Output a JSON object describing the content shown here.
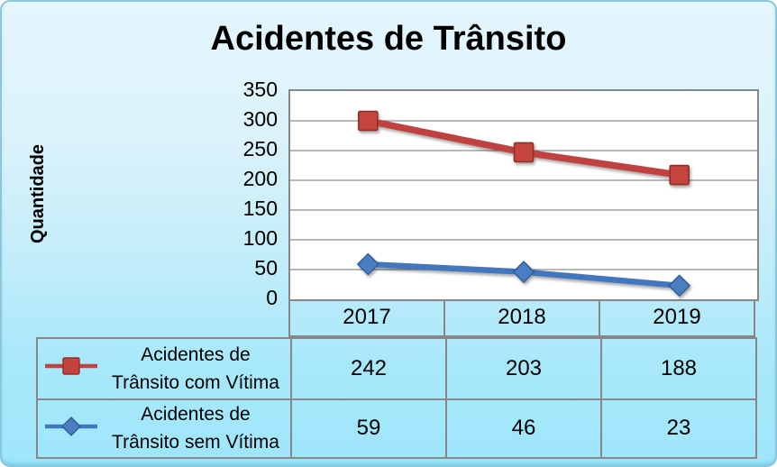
{
  "title": "Acidentes de Trânsito",
  "chart_data": {
    "type": "line",
    "title": "Acidentes de Trânsito",
    "xlabel": "",
    "ylabel": "Quantidade",
    "categories": [
      "2017",
      "2018",
      "2019"
    ],
    "ylim": [
      0,
      350
    ],
    "y_ticks": [
      0,
      50,
      100,
      150,
      200,
      250,
      300,
      350
    ],
    "grid": true,
    "legend_position": "table-left",
    "plot_background": "#ffffff",
    "series": [
      {
        "key": "com-vitima",
        "name": "Acidentes de Trânsito com Vítima",
        "label_lines": [
          "Acidentes de",
          "Trânsito com Vítima"
        ],
        "marker": "square",
        "line_color": "#bf4340",
        "marker_fill": "#c3443e",
        "marker_stroke": "#922f2a",
        "line_width": 7.5,
        "values": [
          242,
          203,
          188
        ],
        "marker_plotted_values": [
          300,
          247,
          209
        ]
      },
      {
        "key": "sem-vitima",
        "name": "Acidentes de Trânsito sem Vítima",
        "label_lines": [
          "Acidentes de",
          "Trânsito sem Vítima"
        ],
        "marker": "diamond",
        "line_color": "#4377bd",
        "marker_fill": "#4a7ec1",
        "marker_stroke": "#2d5a95",
        "line_width": 6.5,
        "values": [
          59,
          46,
          23
        ],
        "marker_plotted_values": [
          59,
          46,
          23
        ]
      }
    ],
    "colors": {
      "background_top": "#e4f5fc",
      "background_bottom": "#9fe6fb",
      "frame_border": "#8cc6da",
      "grid_line": "#8f8f8f",
      "table_border": "#878787",
      "text": "#000000"
    }
  }
}
